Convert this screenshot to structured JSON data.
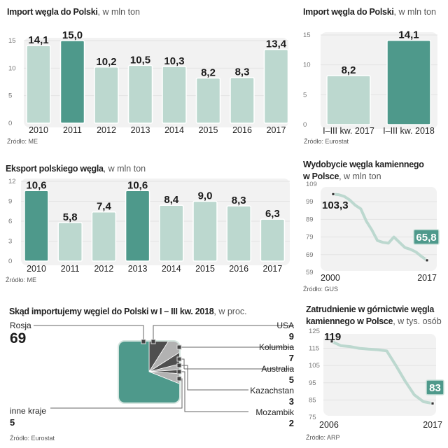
{
  "colors": {
    "light_bar": "#bcd8cf",
    "dark_bar": "#4e998b",
    "line": "#bcd8cf",
    "dark_slice": "#4f4f4f",
    "light_slice": "#b2b2b2",
    "panel_bg": "#f2f2f2",
    "badge_bg": "#4e998b"
  },
  "chart_data": [
    {
      "id": "import_annual",
      "type": "bar",
      "title": "Import węgla do Polski",
      "unit": ", w mln ton",
      "categories": [
        "2010",
        "2011",
        "2012",
        "2013",
        "2014",
        "2015",
        "2016",
        "2017"
      ],
      "values": [
        14.1,
        15.0,
        10.2,
        10.5,
        10.3,
        8.2,
        8.3,
        13.4
      ],
      "value_labels": [
        "14,1",
        "15,0",
        "10,2",
        "10,5",
        "10,3",
        "8,2",
        "8,3",
        "13,4"
      ],
      "highlight": [
        false,
        true,
        false,
        false,
        false,
        false,
        false,
        false
      ],
      "yticks": [
        0,
        5,
        10,
        15
      ],
      "ylim": [
        0,
        15
      ],
      "xlabel": "",
      "ylabel": "",
      "source": "Źródło: ME"
    },
    {
      "id": "import_quarters",
      "type": "bar",
      "title": "Import węgla do Polski",
      "unit": ", w mln ton",
      "categories": [
        "I–III kw. 2017",
        "I–III kw. 2018"
      ],
      "values": [
        8.2,
        14.1
      ],
      "value_labels": [
        "8,2",
        "14,1"
      ],
      "highlight": [
        false,
        true
      ],
      "yticks": [
        0,
        5,
        10,
        15
      ],
      "ylim": [
        0,
        15
      ],
      "xlabel": "",
      "ylabel": "",
      "source": "Źródło: Eurostat"
    },
    {
      "id": "export_annual",
      "type": "bar",
      "title": "Eksport polskiego węgla",
      "unit": ", w mln ton",
      "categories": [
        "2010",
        "2011",
        "2012",
        "2013",
        "2014",
        "2015",
        "2016",
        "2017"
      ],
      "values": [
        10.6,
        5.8,
        7.4,
        10.6,
        8.4,
        9.0,
        8.3,
        6.3
      ],
      "value_labels": [
        "10,6",
        "5,8",
        "7,4",
        "10,6",
        "8,4",
        "9,0",
        "8,3",
        "6,3"
      ],
      "highlight": [
        true,
        false,
        false,
        true,
        false,
        false,
        false,
        false
      ],
      "yticks": [
        0,
        3,
        6,
        9,
        12
      ],
      "ylim": [
        0,
        12
      ],
      "xlabel": "",
      "ylabel": "",
      "source": "Źródło: ME"
    },
    {
      "id": "production",
      "type": "line",
      "title_line1": "Wydobycie węgla kamiennego",
      "title_line2": "w Polsce",
      "unit": ", w mln ton",
      "x": [
        2000,
        2001,
        2002,
        2003,
        2004,
        2005,
        2006,
        2007,
        2008,
        2009,
        2010,
        2011,
        2012,
        2013,
        2014,
        2015,
        2016,
        2017
      ],
      "values": [
        103.3,
        103.0,
        102.0,
        100.0,
        97.0,
        95.0,
        88.0,
        83.0,
        77.0,
        76.0,
        75.5,
        79.0,
        76.0,
        73.0,
        72.0,
        70.5,
        68.0,
        65.8
      ],
      "start_label": "103,3",
      "end_label": "65,8",
      "xtick_labels": [
        "2000",
        "2017"
      ],
      "yticks": [
        59,
        69,
        79,
        89,
        99,
        109
      ],
      "ylim": [
        59,
        109
      ],
      "source": "Źródło: GUS"
    },
    {
      "id": "import_sources",
      "type": "pie",
      "title": "Skąd importujemy węgiel do Polski w I – III kw. 2018",
      "unit": ", w proc.",
      "slices": [
        {
          "name": "Rosja",
          "value": 69,
          "shade": "green"
        },
        {
          "name": "USA",
          "value": 9,
          "shade": "dark"
        },
        {
          "name": "Kolumbia",
          "value": 7,
          "shade": "light"
        },
        {
          "name": "Australia",
          "value": 5,
          "shade": "dark"
        },
        {
          "name": "Kazachstan",
          "value": 3,
          "shade": "light"
        },
        {
          "name": "Mozambik",
          "value": 2,
          "shade": "dark"
        },
        {
          "name": "inne kraje",
          "value": 5,
          "shade": "light"
        }
      ],
      "source": "Źródło: Eurostat"
    },
    {
      "id": "employment",
      "type": "line",
      "title_line1": "Zatrudnienie w górnictwie węgla",
      "title_line2": "kamiennego w Polsce",
      "unit": ", w tys. osób",
      "x": [
        2006,
        2007,
        2008,
        2009,
        2010,
        2011,
        2012,
        2013,
        2014,
        2015,
        2016,
        2017
      ],
      "values": [
        119,
        116.5,
        116,
        115,
        114.5,
        114.2,
        113.5,
        105,
        96,
        88,
        84,
        83
      ],
      "start_label": "119",
      "end_label": "83",
      "xtick_labels": [
        "2006",
        "2017"
      ],
      "yticks": [
        75,
        85,
        95,
        105,
        115,
        125
      ],
      "ylim": [
        75,
        125
      ],
      "source": "Źródło: ARP"
    }
  ]
}
